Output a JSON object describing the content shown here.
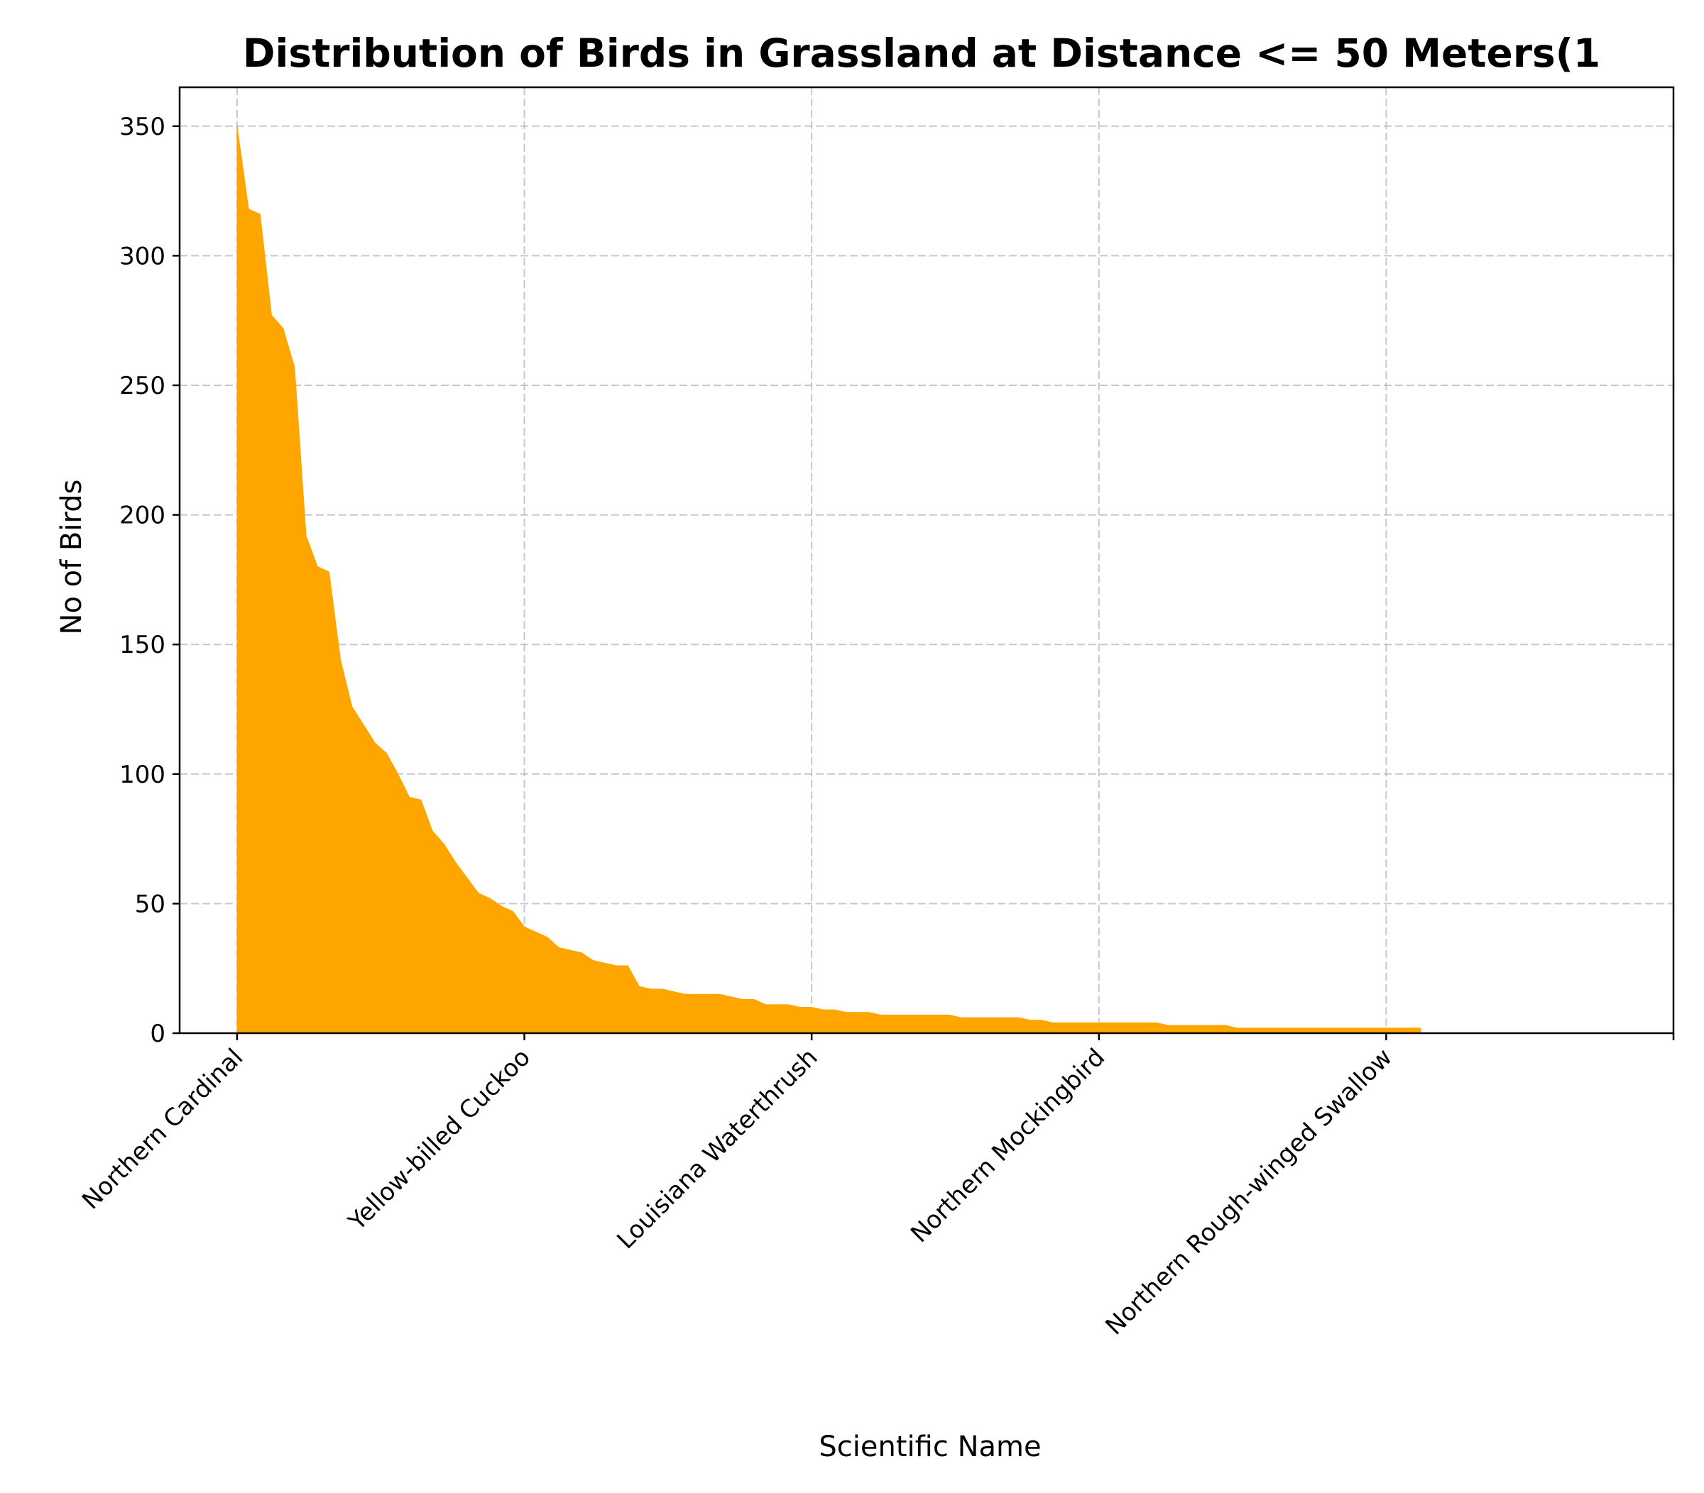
{
  "chart_data": {
    "type": "area",
    "title": "Distribution of Birds in Grassland at Distance <= 50 Meters(1",
    "xlabel": "Scientific Name",
    "ylabel": "No of Birds",
    "ylim": [
      0,
      365
    ],
    "xlim": [
      -5,
      125
    ],
    "grid": true,
    "legend": "none",
    "fill_color": "#FFA500",
    "x_ticks": [
      {
        "index": 0,
        "label": "Northern Cardinal"
      },
      {
        "index": 25,
        "label": "Yellow-billed Cuckoo"
      },
      {
        "index": 50,
        "label": "Louisiana Waterthrush"
      },
      {
        "index": 75,
        "label": "Northern Mockingbird"
      },
      {
        "index": 100,
        "label": "Northern Rough-winged Swallow"
      },
      {
        "index": 125,
        "label": ""
      }
    ],
    "y_ticks": [
      0,
      50,
      100,
      150,
      200,
      250,
      300,
      350
    ],
    "values": [
      350,
      318,
      316,
      277,
      272,
      257,
      192,
      180,
      178,
      144,
      126,
      119,
      112,
      108,
      100,
      91,
      90,
      78,
      73,
      66,
      60,
      54,
      52,
      49,
      47,
      41,
      39,
      37,
      33,
      32,
      31,
      28,
      27,
      26,
      26,
      18,
      17,
      17,
      16,
      15,
      15,
      15,
      15,
      14,
      13,
      13,
      11,
      11,
      11,
      10,
      10,
      9,
      9,
      8,
      8,
      8,
      7,
      7,
      7,
      7,
      7,
      7,
      7,
      6,
      6,
      6,
      6,
      6,
      6,
      5,
      5,
      4,
      4,
      4,
      4,
      4,
      4,
      4,
      4,
      4,
      4,
      3,
      3,
      3,
      3,
      3,
      3,
      2,
      2,
      2,
      2,
      2,
      2,
      2,
      2,
      2,
      2,
      2,
      2,
      2,
      2,
      2,
      2,
      2
    ]
  }
}
